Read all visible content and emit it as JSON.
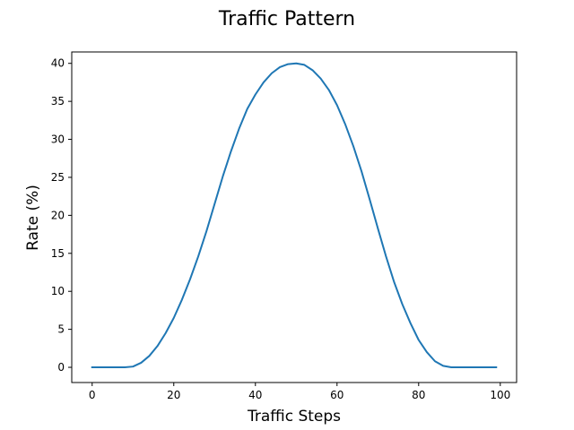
{
  "chart_data": {
    "type": "line",
    "title": "Traffic Pattern",
    "xlabel": "Traffic Steps",
    "ylabel": "Rate (%)",
    "xlim": [
      -5,
      104
    ],
    "ylim": [
      -2,
      41.5
    ],
    "xticks": [
      0,
      20,
      40,
      60,
      80,
      100
    ],
    "yticks": [
      0,
      5,
      10,
      15,
      20,
      25,
      30,
      35,
      40
    ],
    "grid": false,
    "series": [
      {
        "color": "#1f77b4",
        "x": [
          0,
          2,
          4,
          6,
          8,
          10,
          12,
          14,
          16,
          18,
          20,
          22,
          24,
          26,
          28,
          30,
          32,
          34,
          36,
          38,
          40,
          42,
          44,
          46,
          48,
          50,
          52,
          54,
          56,
          58,
          60,
          62,
          64,
          66,
          68,
          70,
          72,
          74,
          76,
          78,
          80,
          82,
          84,
          86,
          88,
          90,
          92,
          94,
          96,
          98,
          99
        ],
        "y": [
          0,
          0,
          0,
          0,
          0,
          0.1,
          0.6,
          1.5,
          2.8,
          4.5,
          6.5,
          8.9,
          11.6,
          14.6,
          17.9,
          21.5,
          25.1,
          28.4,
          31.4,
          34.0,
          35.9,
          37.5,
          38.7,
          39.5,
          39.9,
          40.0,
          39.8,
          39.1,
          38.0,
          36.5,
          34.5,
          32.0,
          29.1,
          25.8,
          22.1,
          18.3,
          14.6,
          11.2,
          8.3,
          5.8,
          3.6,
          2.0,
          0.8,
          0.2,
          0,
          0,
          0,
          0,
          0,
          0,
          0
        ]
      }
    ]
  }
}
